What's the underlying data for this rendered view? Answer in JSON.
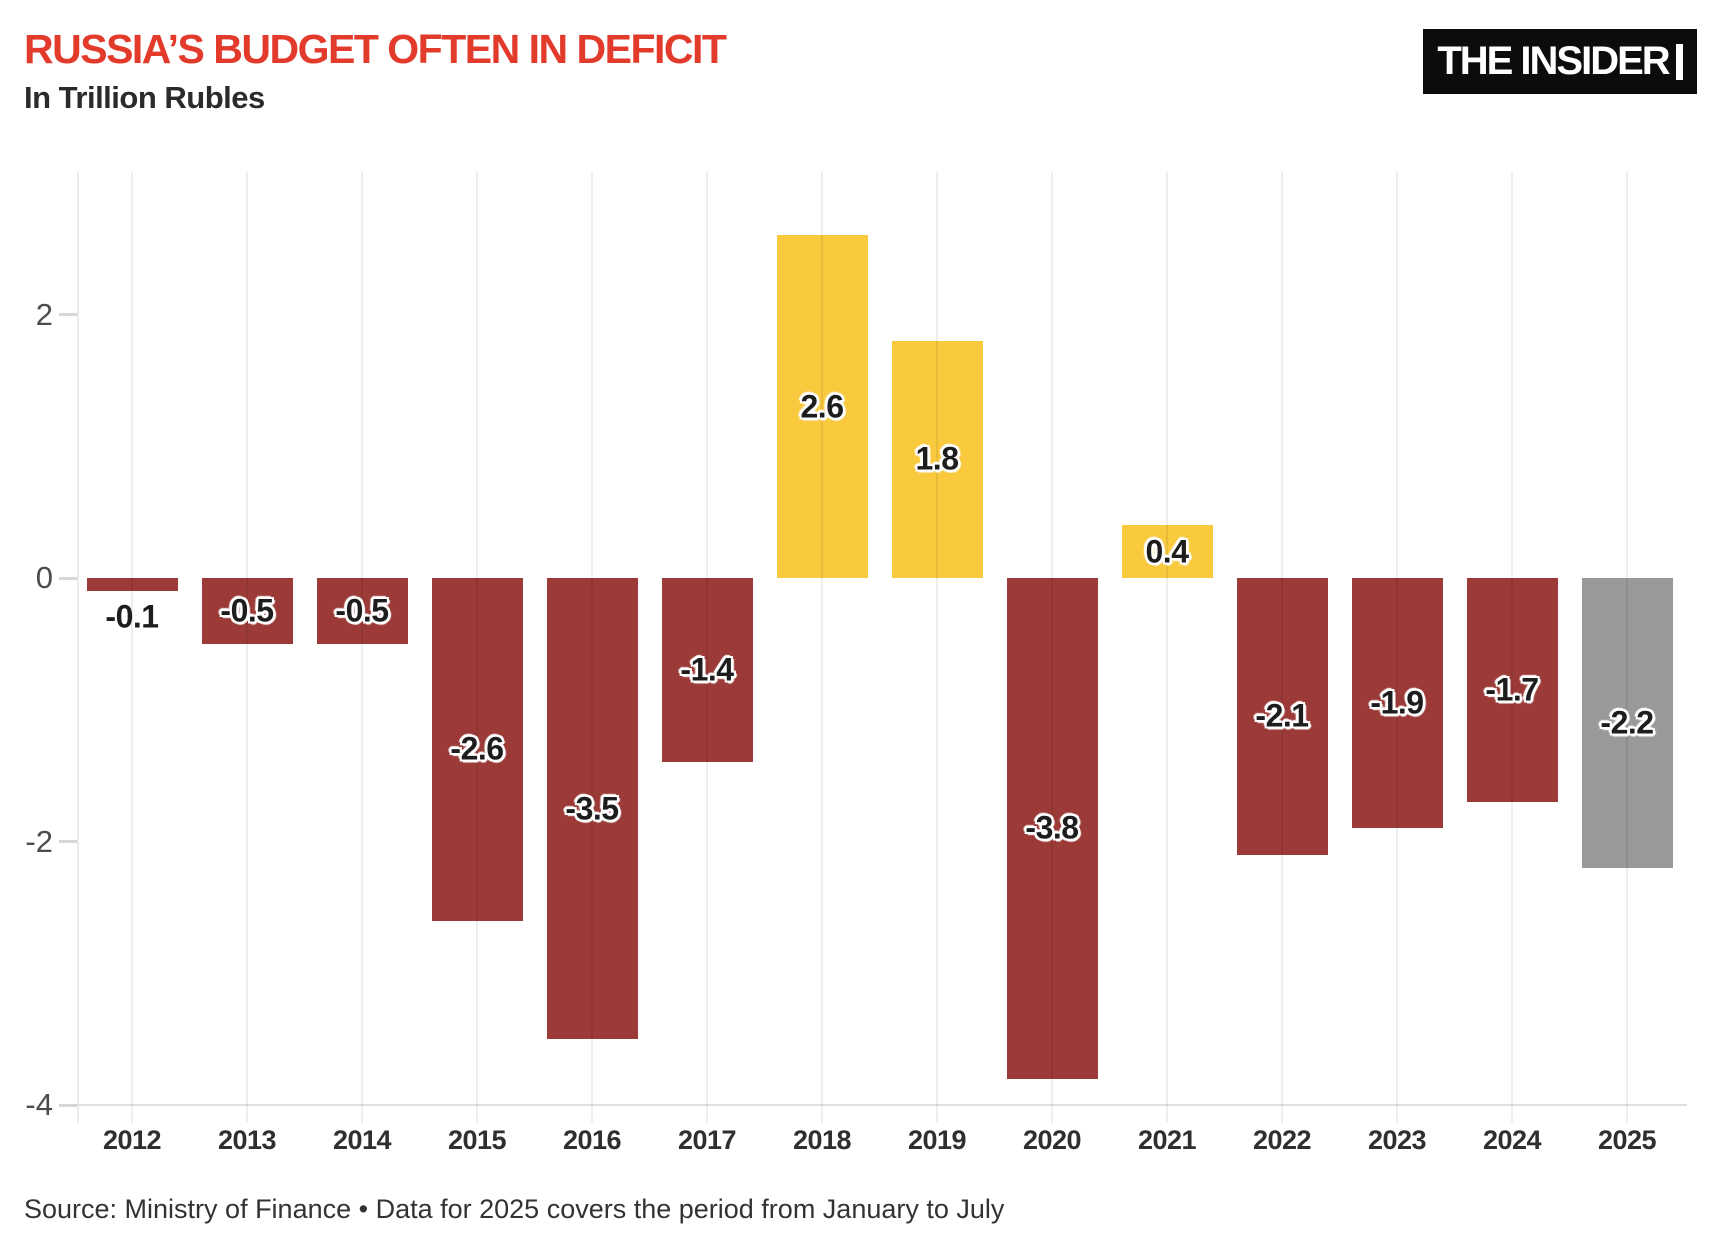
{
  "header": {
    "logo_text": "THE INSIDER"
  },
  "chart_data": {
    "type": "bar",
    "title": "RUSSIA’S BUDGET OFTEN IN DEFICIT",
    "subtitle": "In Trillion Rubles",
    "categories": [
      "2012",
      "2013",
      "2014",
      "2015",
      "2016",
      "2017",
      "2018",
      "2019",
      "2020",
      "2021",
      "2022",
      "2023",
      "2024",
      "2025"
    ],
    "values": [
      -0.1,
      -0.5,
      -0.5,
      -2.6,
      -3.5,
      -1.4,
      2.6,
      1.8,
      -3.8,
      0.4,
      -2.1,
      -1.9,
      -1.7,
      -2.2
    ],
    "bar_labels": [
      "-0.1",
      "-0.5",
      "-0.5",
      "-2.6",
      "-3.5",
      "-1.4",
      "2.6",
      "1.8",
      "-3.8",
      "0.4",
      "-2.1",
      "-1.9",
      "-1.7",
      "-2.2"
    ],
    "bar_color_keys": [
      "deficit",
      "deficit",
      "deficit",
      "deficit",
      "deficit",
      "deficit",
      "surplus",
      "surplus",
      "deficit",
      "surplus",
      "deficit",
      "deficit",
      "deficit",
      "partial_year"
    ],
    "palette": {
      "deficit": "#9b3a37",
      "surplus": "#f9c93e",
      "partial_year": "#999999"
    },
    "xlabel": "",
    "ylabel": "",
    "ylim": [
      -4,
      3.1
    ],
    "yticks": {
      "values": [
        2,
        0,
        -2,
        -4
      ],
      "labels": [
        "2",
        "0",
        "-2",
        "-4"
      ]
    },
    "grid": "vertical category gridlines, light gray, drawn over bars",
    "legend": "none"
  },
  "footer": {
    "source_note": "Source: Ministry of Finance • Data for 2025 covers the period from January to July"
  }
}
